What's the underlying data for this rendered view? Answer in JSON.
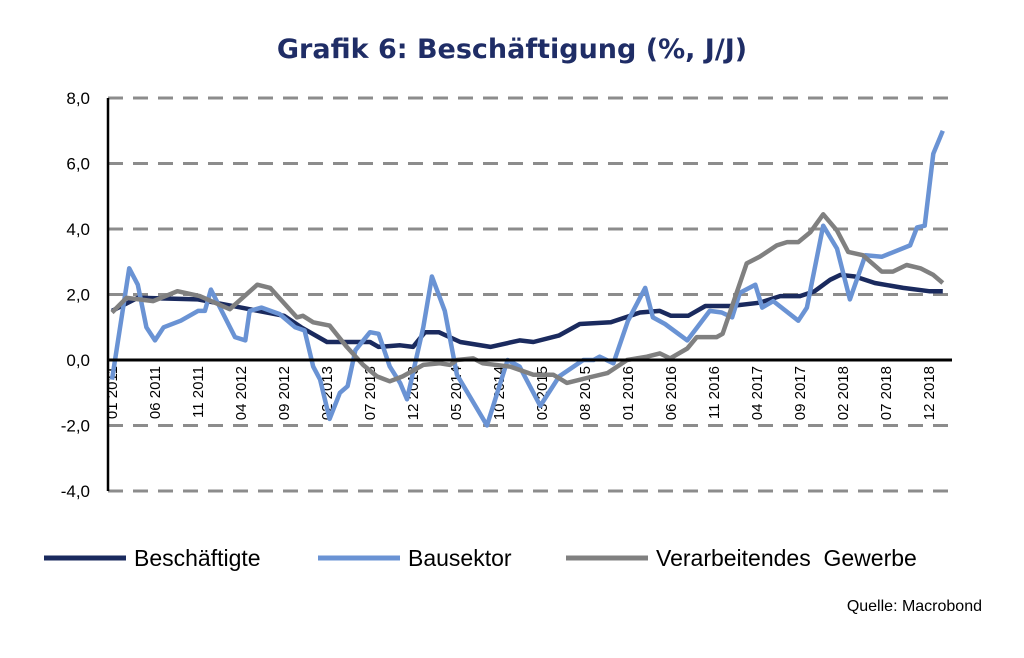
{
  "chart_data": {
    "type": "line",
    "title": "Grafik 6: Beschäftigung (%, J/J)",
    "xlabel": "",
    "ylabel": "",
    "x_unit": "month index (0 = 01 2011)",
    "ylim": [
      -4,
      8
    ],
    "yticks": [
      8,
      6,
      4,
      2,
      0,
      -2,
      -4
    ],
    "ytick_labels": [
      "8,0",
      "6,0",
      "4,0",
      "2,0",
      "0,0",
      "-2,0",
      "-4,0"
    ],
    "xticks": [
      0,
      5,
      10,
      15,
      20,
      25,
      30,
      35,
      40,
      45,
      50,
      55,
      60,
      65,
      70,
      75,
      80,
      85,
      90,
      95
    ],
    "xtick_labels": [
      "01 2011",
      "06 2011",
      "11 2011",
      "04 2012",
      "09 2012",
      "02 2013",
      "07 2013",
      "12 2013",
      "05 2014",
      "10 2014",
      "03 2015",
      "08 2015",
      "01 2016",
      "06 2016",
      "11 2016",
      "04 2017",
      "09 2017",
      "02 2018",
      "07 2018",
      "12 2018"
    ],
    "grid": true,
    "legend_position": "bottom",
    "series": [
      {
        "name": "Beschäftigte",
        "color": "#1a2a5e",
        "points": [
          [
            0,
            1.5
          ],
          [
            3,
            1.9
          ],
          [
            10,
            1.85
          ],
          [
            15,
            1.6
          ],
          [
            20,
            1.35
          ],
          [
            22,
            1.0
          ],
          [
            25,
            0.55
          ],
          [
            30,
            0.55
          ],
          [
            31,
            0.4
          ],
          [
            33.5,
            0.45
          ],
          [
            35,
            0.4
          ],
          [
            36.4,
            0.85
          ],
          [
            38,
            0.85
          ],
          [
            40.5,
            0.55
          ],
          [
            44,
            0.4
          ],
          [
            47.4,
            0.6
          ],
          [
            49,
            0.55
          ],
          [
            52,
            0.75
          ],
          [
            54.4,
            1.1
          ],
          [
            58,
            1.15
          ],
          [
            61.4,
            1.45
          ],
          [
            63.7,
            1.5
          ],
          [
            65,
            1.35
          ],
          [
            67,
            1.35
          ],
          [
            69,
            1.65
          ],
          [
            72,
            1.65
          ],
          [
            75.3,
            1.75
          ],
          [
            77.7,
            1.95
          ],
          [
            80,
            1.95
          ],
          [
            81.7,
            2.1
          ],
          [
            83.5,
            2.45
          ],
          [
            84.7,
            2.6
          ],
          [
            86.4,
            2.55
          ],
          [
            88.7,
            2.35
          ],
          [
            92,
            2.2
          ],
          [
            95,
            2.1
          ],
          [
            96.6,
            2.1
          ]
        ]
      },
      {
        "name": "Bausektor",
        "color": "#6a93d4",
        "points": [
          [
            0,
            -0.6
          ],
          [
            2,
            2.8
          ],
          [
            3,
            2.3
          ],
          [
            4,
            1.0
          ],
          [
            5,
            0.6
          ],
          [
            6,
            1.0
          ],
          [
            8,
            1.2
          ],
          [
            10,
            1.5
          ],
          [
            10.8,
            1.5
          ],
          [
            11.5,
            2.15
          ],
          [
            14.3,
            0.7
          ],
          [
            15.5,
            0.6
          ],
          [
            16,
            1.5
          ],
          [
            17.4,
            1.6
          ],
          [
            19.5,
            1.4
          ],
          [
            21.3,
            1.0
          ],
          [
            22.4,
            0.9
          ],
          [
            23.4,
            -0.2
          ],
          [
            24.2,
            -0.6
          ],
          [
            25.3,
            -1.8
          ],
          [
            26.5,
            -1.0
          ],
          [
            27.4,
            -0.8
          ],
          [
            28.3,
            0.3
          ],
          [
            30,
            0.85
          ],
          [
            31,
            0.8
          ],
          [
            32.3,
            -0.2
          ],
          [
            33.5,
            -0.7
          ],
          [
            34.3,
            -1.2
          ],
          [
            36.2,
            1.0
          ],
          [
            37.2,
            2.55
          ],
          [
            38.7,
            1.5
          ],
          [
            40.1,
            -0.45
          ],
          [
            43.6,
            -2.0
          ],
          [
            46,
            0.0
          ],
          [
            47.4,
            -0.2
          ],
          [
            49.8,
            -1.4
          ],
          [
            52,
            -0.5
          ],
          [
            54.8,
            0.0
          ],
          [
            56,
            0.0
          ],
          [
            56.7,
            0.1
          ],
          [
            58.3,
            -0.1
          ],
          [
            60,
            1.2
          ],
          [
            62,
            2.2
          ],
          [
            62.9,
            1.3
          ],
          [
            64.3,
            1.1
          ],
          [
            66.9,
            0.6
          ],
          [
            69.5,
            1.5
          ],
          [
            70.9,
            1.45
          ],
          [
            72.1,
            1.3
          ],
          [
            73,
            2.05
          ],
          [
            74.8,
            2.3
          ],
          [
            75.6,
            1.6
          ],
          [
            76.9,
            1.8
          ],
          [
            79.8,
            1.2
          ],
          [
            80.8,
            1.6
          ],
          [
            82.7,
            4.1
          ],
          [
            84.3,
            3.4
          ],
          [
            85.8,
            1.85
          ],
          [
            87.6,
            3.2
          ],
          [
            89.5,
            3.15
          ],
          [
            92.8,
            3.5
          ],
          [
            93.6,
            4.05
          ],
          [
            94.5,
            4.1
          ],
          [
            95.5,
            6.3
          ],
          [
            96.6,
            7.0
          ]
        ]
      },
      {
        "name": "Verarbeitendes  Gewerbe",
        "color": "#808080",
        "points": [
          [
            0,
            1.45
          ],
          [
            1.7,
            1.9
          ],
          [
            4.8,
            1.8
          ],
          [
            7.6,
            2.1
          ],
          [
            10.2,
            1.95
          ],
          [
            13.7,
            1.55
          ],
          [
            16.9,
            2.3
          ],
          [
            18.4,
            2.2
          ],
          [
            21.5,
            1.3
          ],
          [
            22.2,
            1.35
          ],
          [
            23.4,
            1.15
          ],
          [
            25.3,
            1.05
          ],
          [
            27.3,
            0.4
          ],
          [
            29.2,
            -0.15
          ],
          [
            30.8,
            -0.5
          ],
          [
            32.3,
            -0.65
          ],
          [
            33.8,
            -0.5
          ],
          [
            36.2,
            -0.15
          ],
          [
            38.1,
            -0.1
          ],
          [
            39.3,
            -0.15
          ],
          [
            40.1,
            0.0
          ],
          [
            42,
            0.05
          ],
          [
            43.1,
            -0.1
          ],
          [
            46.3,
            -0.2
          ],
          [
            49,
            -0.45
          ],
          [
            51.3,
            -0.45
          ],
          [
            52.9,
            -0.7
          ],
          [
            55.2,
            -0.55
          ],
          [
            57.6,
            -0.4
          ],
          [
            59.9,
            0.0
          ],
          [
            62.2,
            0.1
          ],
          [
            63.7,
            0.2
          ],
          [
            64.9,
            0.05
          ],
          [
            66.9,
            0.35
          ],
          [
            68,
            0.7
          ],
          [
            70.3,
            0.7
          ],
          [
            71,
            0.8
          ],
          [
            73.8,
            2.95
          ],
          [
            75.3,
            3.15
          ],
          [
            77.3,
            3.5
          ],
          [
            78.5,
            3.6
          ],
          [
            79.8,
            3.6
          ],
          [
            81.2,
            3.9
          ],
          [
            82.7,
            4.45
          ],
          [
            84.3,
            3.95
          ],
          [
            85.6,
            3.3
          ],
          [
            87.3,
            3.2
          ],
          [
            89.5,
            2.7
          ],
          [
            90.8,
            2.7
          ],
          [
            92.4,
            2.9
          ],
          [
            94,
            2.8
          ],
          [
            95.5,
            2.6
          ],
          [
            96.6,
            2.35
          ]
        ]
      }
    ],
    "source": "Quelle: Macrobond"
  }
}
